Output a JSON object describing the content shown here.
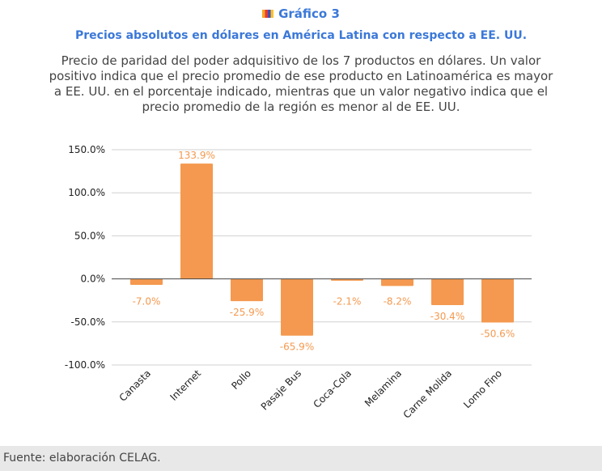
{
  "header": {
    "label": "Gráfico 3",
    "subtitle": "Precios absolutos en dólares en América Latina con respecto a EE. UU.",
    "description": "Precio de paridad del poder adquisitivo de los 7 productos en dólares. Un valor positivo indica que el precio promedio de ese producto en Latinoamérica es mayor a EE. UU. en el porcentaje indicado, mientras que un valor negativo indica que el precio promedio de la región es menor al de EE. UU."
  },
  "chart_data": {
    "type": "bar",
    "categories": [
      "Canasta",
      "Internet",
      "Pollo",
      "Pasaje Bus",
      "Coca-Cola",
      "Melamina",
      "Carne Molida",
      "Lomo Fino"
    ],
    "values": [
      -7.0,
      133.9,
      -25.9,
      -65.9,
      -2.1,
      -8.2,
      -30.4,
      -50.6
    ],
    "data_labels": [
      "-7.0%",
      "133.9%",
      "-25.9%",
      "-65.9%",
      "-2.1%",
      "-8.2%",
      "-30.4%",
      "-50.6%"
    ],
    "yticks": [
      150,
      100,
      50,
      0,
      -50,
      -100
    ],
    "ytick_labels": [
      "150.0%",
      "100.0%",
      "50.0%",
      "0.0%",
      "-50.0%",
      "-100.0%"
    ],
    "ylim": [
      -100,
      150
    ],
    "bar_color": "#f4994f",
    "grid": true
  },
  "footer": {
    "source": "Fuente: elaboración CELAG."
  }
}
